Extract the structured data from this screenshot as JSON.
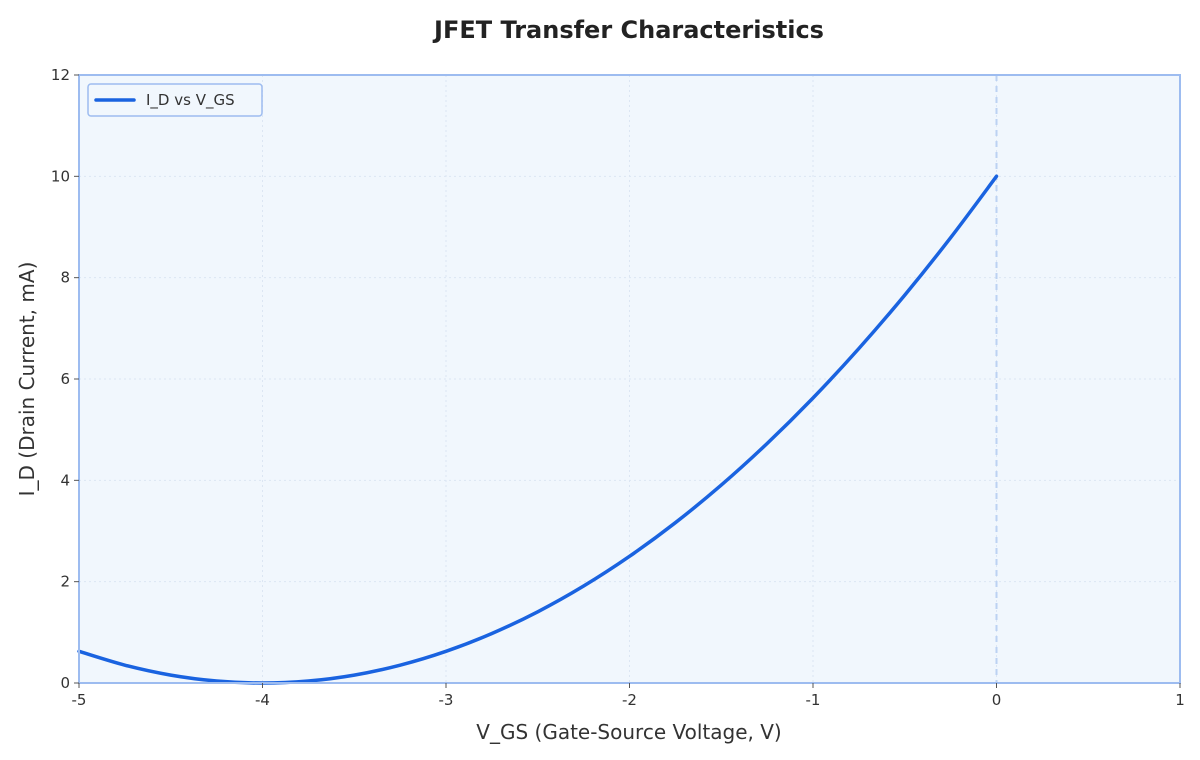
{
  "chart_data": {
    "type": "line",
    "title": "JFET Transfer Characteristics",
    "xlabel": "V_GS (Gate-Source Voltage, V)",
    "ylabel": "I_D (Drain Current, mA)",
    "xlim": [
      -5,
      1
    ],
    "ylim": [
      0,
      12
    ],
    "xticks": [
      -5,
      -4,
      -3,
      -2,
      -1,
      0,
      1
    ],
    "yticks": [
      0,
      2,
      4,
      6,
      8,
      10,
      12
    ],
    "grid": true,
    "legend_position": "top-left",
    "vline": {
      "x": 0,
      "style": "dashed"
    },
    "series": [
      {
        "name": "I_D vs V_GS",
        "color": "#1a63e0",
        "x": [
          -5.0,
          -4.75,
          -4.5,
          -4.25,
          -4.0,
          -3.75,
          -3.5,
          -3.25,
          -3.0,
          -2.75,
          -2.5,
          -2.25,
          -2.0,
          -1.75,
          -1.5,
          -1.25,
          -1.0,
          -0.75,
          -0.5,
          -0.25,
          0.0
        ],
        "y": [
          0.625,
          0.352,
          0.156,
          0.039,
          0.0,
          0.039,
          0.156,
          0.352,
          0.625,
          0.977,
          1.406,
          1.914,
          2.5,
          3.164,
          3.906,
          4.727,
          5.625,
          6.602,
          7.656,
          8.789,
          10.0
        ]
      }
    ]
  },
  "colors": {
    "plot_background": "#f1f7fd",
    "frame": "#9dbcf0",
    "grid": "#dce6f3",
    "vline": "#bcd2f2"
  }
}
